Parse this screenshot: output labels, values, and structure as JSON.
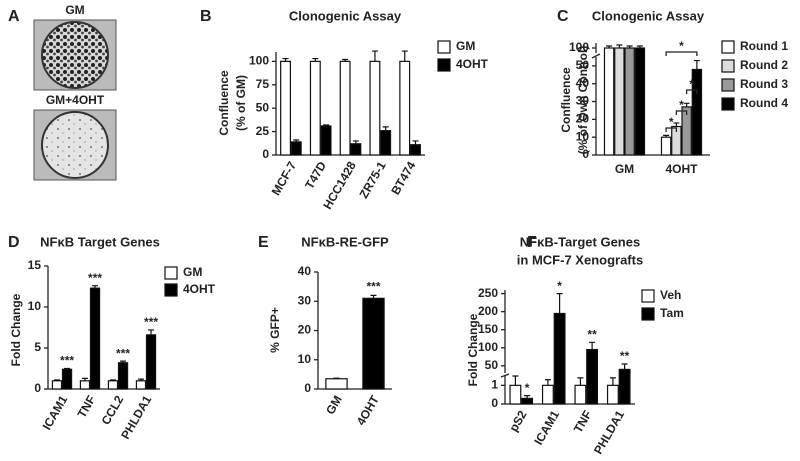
{
  "panel_a": {
    "label": "A",
    "top_caption": "GM",
    "bottom_caption": "GM+4OHT"
  },
  "chart_data": [
    {
      "type": "bar",
      "panel": "B",
      "title": "Clonogenic Assay",
      "y_label": [
        "Confluence",
        "(% of GM)"
      ],
      "categories": [
        "MCF-7",
        "T47D",
        "HCC1428",
        "ZR75-1",
        "BT474"
      ],
      "series": [
        {
          "name": "GM",
          "color": "#ffffff",
          "values": [
            100,
            100,
            100,
            100,
            100
          ],
          "errors": [
            3,
            3,
            2,
            11,
            11
          ]
        },
        {
          "name": "4OHT",
          "color": "#000000",
          "values": [
            14,
            31,
            12,
            26,
            11
          ],
          "errors": [
            2,
            1,
            3,
            4,
            4
          ]
        }
      ],
      "ylim": [
        0,
        110
      ],
      "yticks": [
        0,
        25,
        50,
        75,
        100
      ]
    },
    {
      "type": "bar",
      "panel": "C",
      "title": "Clonogenic Assay",
      "y_label": [
        "Confluence",
        "(% of Own Control)"
      ],
      "categories": [
        "GM",
        "4OHT"
      ],
      "series": [
        {
          "name": "Round 1",
          "color": "#ffffff",
          "values": [
            100,
            10
          ],
          "errors": [
            2,
            1
          ]
        },
        {
          "name": "Round 2",
          "color": "#dddddd",
          "values": [
            100,
            16
          ],
          "errors": [
            3,
            2
          ]
        },
        {
          "name": "Round 3",
          "color": "#999999",
          "values": [
            100,
            27
          ],
          "errors": [
            2,
            2
          ]
        },
        {
          "name": "Round 4",
          "color": "#000000",
          "values": [
            100,
            48
          ],
          "errors": [
            2,
            5
          ]
        }
      ],
      "ylim": [
        0,
        105
      ],
      "y_break": [
        55,
        95
      ],
      "yticks": [
        0,
        10,
        20,
        30,
        40,
        50,
        100
      ],
      "comparisons": [
        "*",
        "*",
        "*",
        "*"
      ]
    },
    {
      "type": "bar",
      "panel": "D",
      "title": "NFκB Target Genes",
      "y_label": [
        "Fold Change"
      ],
      "categories": [
        "ICAM1",
        "TNF",
        "CCL2",
        "PHLDA1"
      ],
      "series": [
        {
          "name": "GM",
          "color": "#ffffff",
          "values": [
            1,
            1,
            1,
            1
          ],
          "errors": [
            0.1,
            0.3,
            0.1,
            0.2
          ]
        },
        {
          "name": "4OHT",
          "color": "#000000",
          "values": [
            2.4,
            12.3,
            3.2,
            6.6
          ],
          "errors": [
            0.1,
            0.3,
            0.2,
            0.6
          ],
          "annotations": [
            "***",
            "***",
            "***",
            "***"
          ]
        }
      ],
      "ylim": [
        0,
        15
      ],
      "yticks": [
        0,
        5,
        10,
        15
      ]
    },
    {
      "type": "bar",
      "panel": "E",
      "title": "NFκB-RE-GFP",
      "y_label": [
        "% GFP+"
      ],
      "categories": [
        "GM",
        "4OHT"
      ],
      "values": [
        3.5,
        31
      ],
      "errors": [
        0.2,
        1
      ],
      "colors": [
        "#ffffff",
        "#000000"
      ],
      "annotation": {
        "category": "4OHT",
        "text": "***"
      },
      "ylim": [
        0,
        40
      ],
      "yticks": [
        0,
        10,
        20,
        30,
        40
      ]
    },
    {
      "type": "bar",
      "panel": "F",
      "title": [
        "NFκB-Target Genes",
        "in MCF-7 Xenografts"
      ],
      "y_label": [
        "Fold Change"
      ],
      "categories": [
        "pS2",
        "ICAM1",
        "TNF",
        "PHLDA1"
      ],
      "series": [
        {
          "name": "Veh",
          "color": "#ffffff",
          "values": [
            1,
            1,
            1,
            1
          ],
          "errors": [
            0.5,
            0.3,
            0.4,
            0.4
          ]
        },
        {
          "name": "Tam",
          "color": "#000000",
          "values": [
            0.3,
            195,
            95,
            40
          ],
          "errors": [
            0.15,
            55,
            20,
            15
          ],
          "annotations": [
            "*",
            "*",
            "**",
            "**"
          ]
        }
      ],
      "ylim": [
        0,
        260
      ],
      "y_break": [
        1.5,
        30
      ],
      "yticks": [
        0,
        1,
        50,
        100,
        150,
        200,
        250
      ]
    }
  ]
}
